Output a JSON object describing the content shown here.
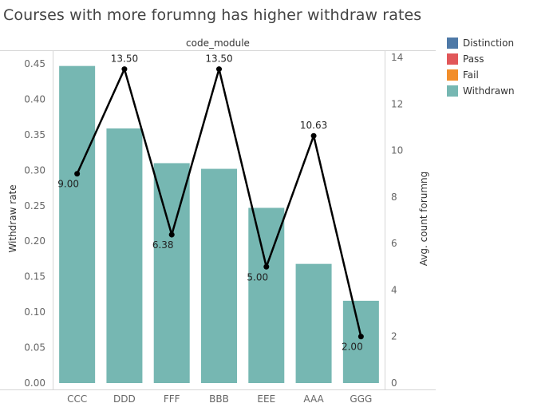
{
  "chart_data": {
    "type": "bar",
    "title": "Courses with more forumng has higher withdraw rates",
    "header_label": "code_module",
    "categories": [
      "CCC",
      "DDD",
      "FFF",
      "BBB",
      "EEE",
      "AAA",
      "GGG"
    ],
    "series": [
      {
        "name": "Withdrawn",
        "type": "bar",
        "axis": "left",
        "values": [
          0.447,
          0.359,
          0.31,
          0.302,
          0.247,
          0.168,
          0.116
        ]
      },
      {
        "type": "line",
        "axis": "right",
        "values": [
          9.0,
          13.5,
          6.38,
          13.5,
          5.0,
          10.63,
          2.0
        ],
        "labels": [
          "9.00",
          "13.50",
          "6.38",
          "13.50",
          "5.00",
          "10.63",
          "2.00"
        ]
      }
    ],
    "ylabel": "Withdraw rate",
    "ylim": [
      0,
      0.45
    ],
    "yticks": [
      "0.00",
      "0.05",
      "0.10",
      "0.15",
      "0.20",
      "0.25",
      "0.30",
      "0.35",
      "0.40",
      "0.45"
    ],
    "y2label": "Avg. count forumng",
    "y2lim": [
      0,
      14
    ],
    "y2ticks": [
      "0",
      "2",
      "4",
      "6",
      "8",
      "10",
      "12",
      "14"
    ],
    "legend": {
      "placement": "right",
      "items": [
        {
          "label": "Distinction",
          "color": "#4e79a7"
        },
        {
          "label": "Pass",
          "color": "#e15759"
        },
        {
          "label": "Fail",
          "color": "#f28e2b"
        },
        {
          "label": "Withdrawn",
          "color": "#76b7b2"
        }
      ]
    },
    "colors": {
      "bar": "#76b7b2",
      "line": "#000000"
    }
  }
}
